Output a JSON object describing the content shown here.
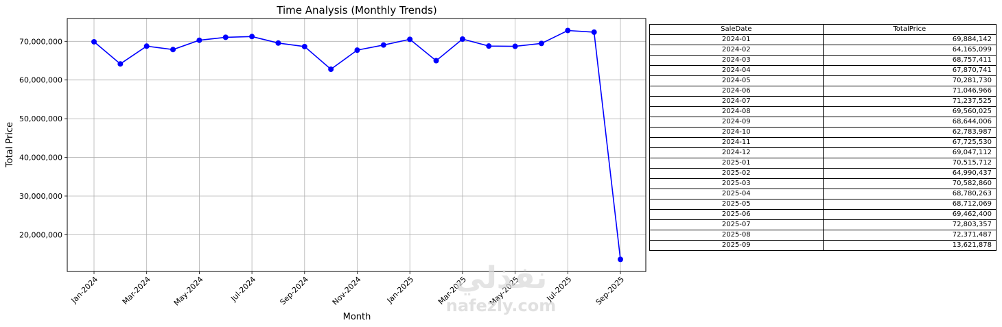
{
  "chart_data": {
    "type": "line",
    "title": "Time Analysis (Monthly Trends)",
    "xlabel": "Month",
    "ylabel": "Total Price",
    "x": [
      "2024-01",
      "2024-02",
      "2024-03",
      "2024-04",
      "2024-05",
      "2024-06",
      "2024-07",
      "2024-08",
      "2024-09",
      "2024-10",
      "2024-11",
      "2024-12",
      "2025-01",
      "2025-02",
      "2025-03",
      "2025-04",
      "2025-05",
      "2025-06",
      "2025-07",
      "2025-08",
      "2025-09"
    ],
    "series": [
      {
        "values": [
          69884142,
          64165099,
          68757411,
          67870741,
          70281730,
          71046966,
          71237525,
          69560025,
          68644006,
          62783987,
          67725530,
          69047112,
          70515712,
          64990437,
          70582860,
          68780263,
          68712069,
          69462400,
          72803357,
          72371487,
          13621878
        ]
      }
    ],
    "x_tick_labels": [
      "Jan-2024",
      "Mar-2024",
      "May-2024",
      "Jul-2024",
      "Sep-2024",
      "Nov-2024",
      "Jan-2025",
      "Mar-2025",
      "May-2025",
      "Jul-2025",
      "Sep-2025"
    ],
    "y_ticks": [
      20000000,
      30000000,
      40000000,
      50000000,
      60000000,
      70000000
    ],
    "y_tick_labels": [
      "20,000,000",
      "30,000,000",
      "40,000,000",
      "50,000,000",
      "60,000,000",
      "70,000,000"
    ],
    "ylim": [
      10500000,
      75900000
    ],
    "grid": true,
    "line_color": "#0000ff",
    "marker_color": "#0000ff"
  },
  "table": {
    "headers": [
      "SaleDate",
      "TotalPrice"
    ],
    "rows": [
      [
        "2024-01",
        "69,884,142"
      ],
      [
        "2024-02",
        "64,165,099"
      ],
      [
        "2024-03",
        "68,757,411"
      ],
      [
        "2024-04",
        "67,870,741"
      ],
      [
        "2024-05",
        "70,281,730"
      ],
      [
        "2024-06",
        "71,046,966"
      ],
      [
        "2024-07",
        "71,237,525"
      ],
      [
        "2024-08",
        "69,560,025"
      ],
      [
        "2024-09",
        "68,644,006"
      ],
      [
        "2024-10",
        "62,783,987"
      ],
      [
        "2024-11",
        "67,725,530"
      ],
      [
        "2024-12",
        "69,047,112"
      ],
      [
        "2025-01",
        "70,515,712"
      ],
      [
        "2025-02",
        "64,990,437"
      ],
      [
        "2025-03",
        "70,582,860"
      ],
      [
        "2025-04",
        "68,780,263"
      ],
      [
        "2025-05",
        "68,712,069"
      ],
      [
        "2025-06",
        "69,462,400"
      ],
      [
        "2025-07",
        "72,803,357"
      ],
      [
        "2025-08",
        "72,371,487"
      ],
      [
        "2025-09",
        "13,621,878"
      ]
    ]
  },
  "watermark": {
    "arabic": "نفذلي",
    "latin": "nafezly.com"
  }
}
